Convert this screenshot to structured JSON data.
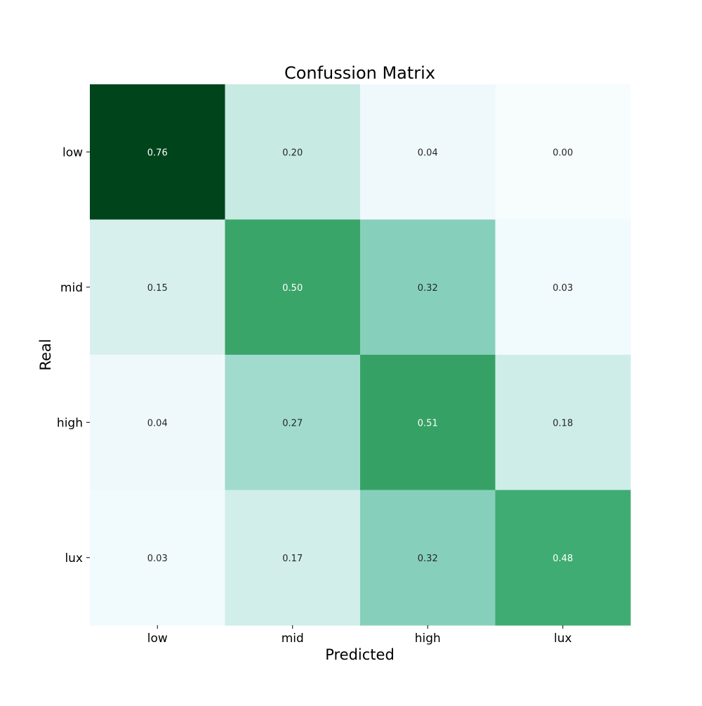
{
  "chart_data": {
    "type": "heatmap",
    "title": "Confussion Matrix",
    "xlabel": "Predicted",
    "ylabel": "Real",
    "x_categories": [
      "low",
      "mid",
      "high",
      "lux"
    ],
    "y_categories": [
      "low",
      "mid",
      "high",
      "lux"
    ],
    "values": [
      [
        0.76,
        0.2,
        0.04,
        0.0
      ],
      [
        0.15,
        0.5,
        0.32,
        0.03
      ],
      [
        0.04,
        0.27,
        0.51,
        0.18
      ],
      [
        0.03,
        0.17,
        0.32,
        0.48
      ]
    ],
    "value_format": "0.00",
    "colormap": "BuGn",
    "color_range": [
      0,
      0.76
    ],
    "colors": {
      "low": "#f7fcfd",
      "high": "#00441b",
      "text_dark": "#262626",
      "text_light": "#ffffff"
    },
    "colorbar": false,
    "grid": false
  }
}
